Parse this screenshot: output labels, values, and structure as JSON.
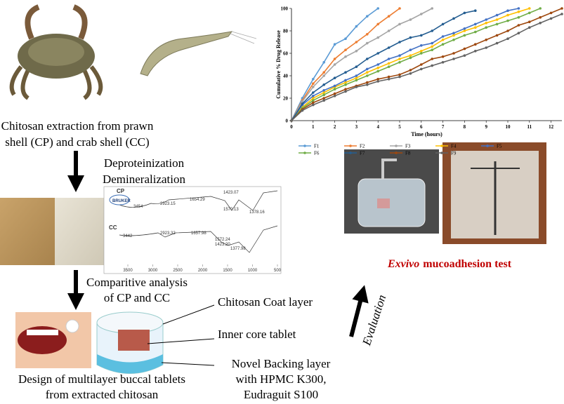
{
  "extraction": {
    "lines": [
      "Chitosan extraction from prawn",
      "shell (CP) and crab shell (CC)"
    ]
  },
  "process": {
    "lines": [
      "Deproteinization",
      "Demineralization"
    ]
  },
  "analysis": {
    "lines": [
      "Comparitive analysis",
      "of CP and CC"
    ]
  },
  "design": {
    "lines": [
      "Design of multilayer buccal tablets",
      "from extracted chitosan"
    ]
  },
  "layers": {
    "coat": "Chitosan Coat layer",
    "core": "Inner core tablet",
    "backing": [
      "Novel Backing layer",
      "with HPMC K300,",
      "Eudraguit S100"
    ]
  },
  "evaluation": {
    "arrow_label": "Evaluation",
    "test_prefix": "Exvivo",
    "test_suffix": "mucoadhesion test"
  },
  "spectrum": {
    "brand": "BRUKER",
    "cp_label": "CP",
    "cc_label": "CC",
    "cp_peaks": [
      "3454",
      "2923.15",
      "1654.29",
      "1423.07",
      "1570.13",
      "1378.16"
    ],
    "cc_peaks": [
      "3442",
      "2923.32",
      "1657.98",
      "1572.24",
      "1423.20",
      "1377.98"
    ],
    "xticks": [
      3500,
      3000,
      2500,
      2000,
      1500,
      1000,
      500
    ]
  },
  "chart_data": {
    "type": "line",
    "ylabel": "Cumulative % Drug Release",
    "xlabel": "Time (hours)",
    "x": [
      0,
      0.5,
      1,
      1.5,
      2,
      2.5,
      3,
      3.5,
      4,
      4.5,
      5,
      5.5,
      6,
      6.5,
      7,
      7.5,
      8,
      8.5,
      9,
      9.5,
      10,
      10.5,
      11,
      11.5,
      12,
      12.5
    ],
    "xlim": [
      0,
      12.5
    ],
    "xticks": [
      0,
      1,
      2,
      3,
      4,
      5,
      6,
      7,
      8,
      9,
      10,
      11,
      12
    ],
    "ylim": [
      0,
      100
    ],
    "yticks": [
      0,
      20,
      40,
      60,
      80,
      100
    ],
    "series": [
      {
        "name": "F1",
        "color": "#5b9bd5",
        "values": [
          0,
          20,
          37,
          52,
          68,
          73,
          84,
          93,
          100,
          null,
          null,
          null,
          null,
          null,
          null,
          null,
          null,
          null,
          null,
          null,
          null,
          null,
          null,
          null,
          null,
          null
        ]
      },
      {
        "name": "F2",
        "color": "#ed7d31",
        "values": [
          0,
          18,
          33,
          43,
          55,
          63,
          70,
          77,
          86,
          93,
          100,
          null,
          null,
          null,
          null,
          null,
          null,
          null,
          null,
          null,
          null,
          null,
          null,
          null,
          null,
          null
        ]
      },
      {
        "name": "F3",
        "color": "#a5a5a5",
        "values": [
          0,
          17,
          30,
          40,
          50,
          57,
          62,
          69,
          74,
          80,
          86,
          90,
          95,
          100,
          null,
          null,
          null,
          null,
          null,
          null,
          null,
          null,
          null,
          null,
          null,
          null
        ]
      },
      {
        "name": "F4",
        "color": "#ffc000",
        "values": [
          0,
          12,
          20,
          25,
          30,
          34,
          38,
          43,
          47,
          51,
          55,
          58,
          62,
          66,
          72,
          76,
          80,
          83,
          87,
          90,
          94,
          97,
          100,
          null,
          null,
          null
        ]
      },
      {
        "name": "F5",
        "color": "#4472c4",
        "values": [
          0,
          14,
          22,
          27,
          31,
          36,
          40,
          46,
          50,
          55,
          58,
          63,
          67,
          69,
          75,
          78,
          82,
          86,
          90,
          94,
          98,
          100,
          null,
          null,
          null,
          null
        ]
      },
      {
        "name": "F6",
        "color": "#70ad47",
        "values": [
          0,
          11,
          18,
          23,
          28,
          32,
          36,
          40,
          44,
          48,
          52,
          56,
          60,
          63,
          68,
          72,
          76,
          79,
          83,
          86,
          89,
          92,
          96,
          100,
          null,
          null
        ]
      },
      {
        "name": "F7",
        "color": "#255e91",
        "values": [
          0,
          15,
          25,
          32,
          38,
          43,
          48,
          55,
          60,
          65,
          70,
          74,
          76,
          80,
          86,
          91,
          96,
          98,
          null,
          null,
          null,
          null,
          null,
          null,
          null,
          null
        ]
      },
      {
        "name": "F8",
        "color": "#9e480e",
        "values": [
          0,
          10,
          16,
          20,
          24,
          28,
          31,
          34,
          37,
          39,
          41,
          45,
          50,
          55,
          57,
          60,
          64,
          68,
          72,
          76,
          80,
          85,
          88,
          92,
          96,
          100
        ]
      },
      {
        "name": "F9",
        "color": "#636363",
        "values": [
          0,
          9,
          14,
          18,
          22,
          26,
          30,
          32,
          35,
          37,
          39,
          42,
          46,
          49,
          52,
          55,
          58,
          62,
          65,
          69,
          73,
          78,
          83,
          87,
          91,
          95
        ]
      }
    ]
  }
}
